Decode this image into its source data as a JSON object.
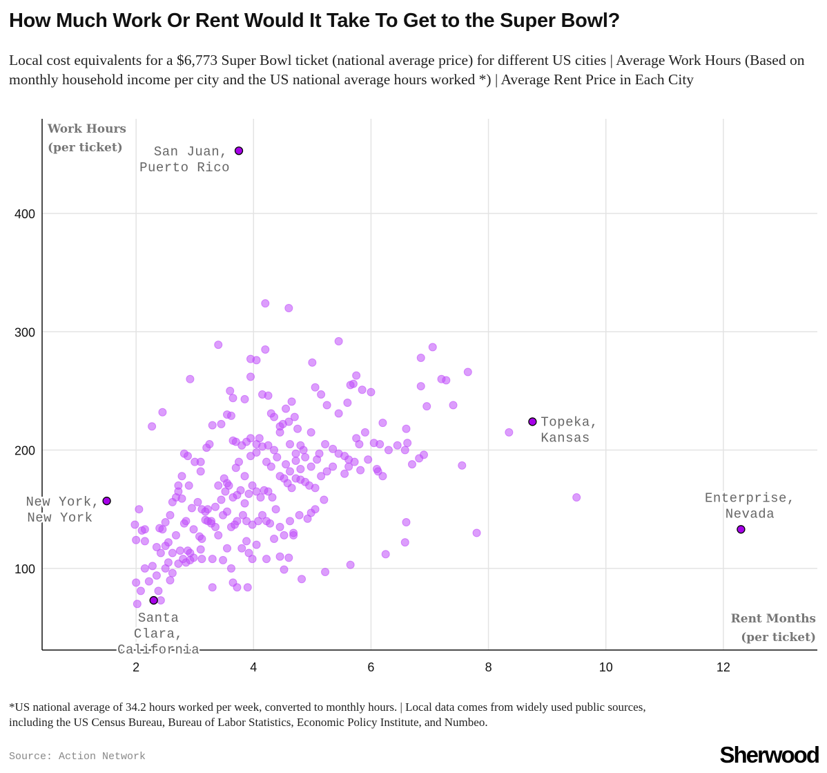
{
  "header": {
    "title": "How Much Work Or Rent Would It Take To Get to the Super Bowl?",
    "subtitle": "Local cost equivalents for a $6,773 Super Bowl ticket (national average price) for different US cities | Average Work Hours (Based on monthly household income per city and the US national average hours worked *) | Average Rent Price in Each City"
  },
  "footer": {
    "footnote": "*US national average of 34.2 hours worked per week, converted to monthly hours. | Local data comes from widely used public sources, including the US Census Bureau, Bureau of Labor Statistics, Economic Policy Institute, and Numbeo.",
    "source": "Source: Action Network",
    "brand": "Sherwood"
  },
  "colors": {
    "point_fill": "#c04dfa",
    "point_opacity": 0.55,
    "highlight_fill": "#a600e8",
    "highlight_stroke": "#000000",
    "grid": "#e3e3e3",
    "axis": "#111111"
  },
  "chart_data": {
    "type": "scatter",
    "title": "How Much Work Or Rent Would It Take To Get to the Super Bowl?",
    "xlabel": "Rent Months (per ticket)",
    "ylabel": "Work Hours (per ticket)",
    "xlabel_lines": [
      "Rent Months",
      "(per ticket)"
    ],
    "ylabel_lines": [
      "Work Hours",
      "(per ticket)"
    ],
    "xlim": [
      0.4,
      13.6
    ],
    "ylim": [
      31,
      480
    ],
    "xticks": [
      2,
      4,
      6,
      8,
      10,
      12
    ],
    "yticks": [
      100,
      200,
      300,
      400
    ],
    "grid": true,
    "highlighted": [
      {
        "city": "San Juan, Puerto Rico",
        "lines": [
          "San Juan,",
          "Puerto Rico"
        ],
        "x": 3.75,
        "y": 453,
        "label_pos": "left"
      },
      {
        "city": "New York, New York",
        "lines": [
          "New York,",
          "New York"
        ],
        "x": 1.5,
        "y": 157,
        "label_pos": "left"
      },
      {
        "city": "Santa Clara, California",
        "lines": [
          "Santa",
          "Clara,",
          "California"
        ],
        "x": 2.3,
        "y": 73,
        "label_pos": "below"
      },
      {
        "city": "Topeka, Kansas",
        "lines": [
          "Topeka,",
          "Kansas"
        ],
        "x": 8.75,
        "y": 224,
        "label_pos": "right"
      },
      {
        "city": "Enterprise, Nevada",
        "lines": [
          "Enterprise,",
          "Nevada"
        ],
        "x": 12.3,
        "y": 133,
        "label_pos": "above"
      }
    ],
    "points": [
      [
        4.2,
        324
      ],
      [
        4.6,
        320
      ],
      [
        3.4,
        289
      ],
      [
        5.45,
        292
      ],
      [
        2.92,
        260
      ],
      [
        3.95,
        277
      ],
      [
        4.05,
        276
      ],
      [
        4.2,
        285
      ],
      [
        5.0,
        274
      ],
      [
        6.85,
        278
      ],
      [
        7.05,
        287
      ],
      [
        7.65,
        266
      ],
      [
        7.2,
        260
      ],
      [
        7.28,
        259
      ],
      [
        2.27,
        220
      ],
      [
        2.45,
        232
      ],
      [
        3.6,
        250
      ],
      [
        3.65,
        244
      ],
      [
        3.62,
        229
      ],
      [
        3.85,
        243
      ],
      [
        3.95,
        262
      ],
      [
        4.15,
        247
      ],
      [
        4.25,
        246
      ],
      [
        4.3,
        231
      ],
      [
        4.35,
        228
      ],
      [
        4.45,
        220
      ],
      [
        4.55,
        235
      ],
      [
        4.6,
        224
      ],
      [
        4.65,
        241
      ],
      [
        4.7,
        228
      ],
      [
        4.75,
        218
      ],
      [
        5.05,
        253
      ],
      [
        5.15,
        247
      ],
      [
        5.25,
        238
      ],
      [
        5.45,
        231
      ],
      [
        5.6,
        240
      ],
      [
        5.65,
        255
      ],
      [
        5.7,
        256
      ],
      [
        5.75,
        263
      ],
      [
        5.85,
        251
      ],
      [
        6.0,
        249
      ],
      [
        6.2,
        223
      ],
      [
        6.6,
        218
      ],
      [
        6.85,
        254
      ],
      [
        6.95,
        237
      ],
      [
        7.4,
        238
      ],
      [
        8.35,
        215
      ],
      [
        9.5,
        160
      ],
      [
        7.8,
        130
      ],
      [
        7.55,
        187
      ],
      [
        2.82,
        197
      ],
      [
        2.88,
        195
      ],
      [
        2.72,
        170
      ],
      [
        2.78,
        178
      ],
      [
        2.9,
        170
      ],
      [
        3.0,
        190
      ],
      [
        3.2,
        202
      ],
      [
        3.25,
        205
      ],
      [
        3.3,
        221
      ],
      [
        3.45,
        222
      ],
      [
        3.55,
        230
      ],
      [
        3.65,
        208
      ],
      [
        3.7,
        207
      ],
      [
        3.8,
        204
      ],
      [
        3.88,
        207
      ],
      [
        3.95,
        210
      ],
      [
        4.05,
        205
      ],
      [
        4.1,
        210
      ],
      [
        4.15,
        203
      ],
      [
        4.25,
        204
      ],
      [
        4.35,
        200
      ],
      [
        4.45,
        215
      ],
      [
        4.5,
        222
      ],
      [
        4.62,
        205
      ],
      [
        4.72,
        197
      ],
      [
        4.8,
        204
      ],
      [
        4.85,
        200
      ],
      [
        4.98,
        215
      ],
      [
        5.12,
        197
      ],
      [
        5.22,
        205
      ],
      [
        5.35,
        201
      ],
      [
        5.45,
        197
      ],
      [
        5.55,
        195
      ],
      [
        5.62,
        192
      ],
      [
        5.75,
        210
      ],
      [
        5.8,
        205
      ],
      [
        5.9,
        215
      ],
      [
        6.05,
        206
      ],
      [
        6.15,
        205
      ],
      [
        6.3,
        200
      ],
      [
        6.45,
        204
      ],
      [
        6.58,
        200
      ],
      [
        6.62,
        206
      ],
      [
        6.7,
        188
      ],
      [
        6.82,
        193
      ],
      [
        6.9,
        196
      ],
      [
        2.45,
        133
      ],
      [
        2.5,
        139
      ],
      [
        2.58,
        145
      ],
      [
        2.62,
        156
      ],
      [
        2.68,
        160
      ],
      [
        2.72,
        165
      ],
      [
        2.78,
        159
      ],
      [
        2.85,
        140
      ],
      [
        2.95,
        151
      ],
      [
        3.05,
        156
      ],
      [
        3.12,
        150
      ],
      [
        3.18,
        141
      ],
      [
        3.22,
        150
      ],
      [
        3.28,
        140
      ],
      [
        3.35,
        152
      ],
      [
        3.45,
        158
      ],
      [
        3.52,
        165
      ],
      [
        3.58,
        170
      ],
      [
        3.65,
        160
      ],
      [
        3.72,
        162
      ],
      [
        3.78,
        166
      ],
      [
        3.85,
        155
      ],
      [
        3.92,
        163
      ],
      [
        3.98,
        170
      ],
      [
        4.05,
        165
      ],
      [
        4.12,
        160
      ],
      [
        4.18,
        166
      ],
      [
        4.25,
        165
      ],
      [
        4.32,
        160
      ],
      [
        4.45,
        178
      ],
      [
        4.52,
        176
      ],
      [
        4.58,
        172
      ],
      [
        4.65,
        168
      ],
      [
        4.72,
        176
      ],
      [
        4.8,
        175
      ],
      [
        4.88,
        173
      ],
      [
        4.95,
        170
      ],
      [
        5.05,
        168
      ],
      [
        5.15,
        178
      ],
      [
        5.25,
        182
      ],
      [
        5.35,
        186
      ],
      [
        5.55,
        180
      ],
      [
        5.62,
        186
      ],
      [
        5.72,
        190
      ],
      [
        5.82,
        183
      ],
      [
        5.95,
        192
      ],
      [
        6.1,
        184
      ],
      [
        6.2,
        178
      ],
      [
        6.12,
        182
      ],
      [
        3.1,
        190
      ],
      [
        3.1,
        182
      ],
      [
        3.4,
        170
      ],
      [
        3.5,
        176
      ],
      [
        3.55,
        172
      ],
      [
        3.7,
        185
      ],
      [
        3.75,
        190
      ],
      [
        3.85,
        178
      ],
      [
        3.95,
        195
      ],
      [
        4.05,
        198
      ],
      [
        4.22,
        190
      ],
      [
        4.3,
        186
      ],
      [
        4.4,
        194
      ],
      [
        4.55,
        188
      ],
      [
        4.62,
        182
      ],
      [
        4.72,
        191
      ],
      [
        4.8,
        184
      ],
      [
        4.88,
        194
      ],
      [
        4.98,
        186
      ],
      [
        5.08,
        192
      ],
      [
        1.98,
        137
      ],
      [
        2.0,
        124
      ],
      [
        2.05,
        150
      ],
      [
        2.1,
        132
      ],
      [
        2.15,
        133
      ],
      [
        2.15,
        123
      ],
      [
        2.35,
        118
      ],
      [
        2.4,
        134
      ],
      [
        2.42,
        113
      ],
      [
        2.5,
        119
      ],
      [
        2.55,
        122
      ],
      [
        2.62,
        113
      ],
      [
        2.68,
        128
      ],
      [
        2.75,
        115
      ],
      [
        2.82,
        138
      ],
      [
        2.88,
        115
      ],
      [
        2.92,
        113
      ],
      [
        2.98,
        133
      ],
      [
        3.08,
        127
      ],
      [
        3.12,
        125
      ],
      [
        3.18,
        148
      ],
      [
        3.22,
        140
      ],
      [
        3.28,
        138
      ],
      [
        3.35,
        135
      ],
      [
        3.4,
        128
      ],
      [
        3.48,
        145
      ],
      [
        3.55,
        148
      ],
      [
        3.62,
        135
      ],
      [
        3.68,
        137
      ],
      [
        3.72,
        140
      ],
      [
        3.82,
        145
      ],
      [
        3.88,
        140
      ],
      [
        3.98,
        137
      ],
      [
        4.08,
        140
      ],
      [
        4.15,
        145
      ],
      [
        4.22,
        140
      ],
      [
        4.28,
        138
      ],
      [
        4.38,
        150
      ],
      [
        4.45,
        135
      ],
      [
        4.52,
        128
      ],
      [
        4.62,
        140
      ],
      [
        4.68,
        128
      ],
      [
        4.78,
        145
      ],
      [
        4.92,
        142
      ],
      [
        4.98,
        147
      ],
      [
        5.05,
        150
      ],
      [
        5.2,
        158
      ],
      [
        2.0,
        88
      ],
      [
        2.02,
        70
      ],
      [
        2.08,
        81
      ],
      [
        2.15,
        100
      ],
      [
        2.22,
        89
      ],
      [
        2.28,
        102
      ],
      [
        2.35,
        94
      ],
      [
        2.38,
        81
      ],
      [
        2.42,
        73
      ],
      [
        2.5,
        100
      ],
      [
        2.55,
        105
      ],
      [
        2.58,
        90
      ],
      [
        2.62,
        96
      ],
      [
        2.72,
        104
      ],
      [
        2.8,
        108
      ],
      [
        2.85,
        105
      ],
      [
        2.92,
        107
      ],
      [
        2.98,
        109
      ],
      [
        3.1,
        116
      ],
      [
        3.12,
        108
      ],
      [
        3.3,
        108
      ],
      [
        3.48,
        107
      ],
      [
        3.55,
        117
      ],
      [
        3.62,
        100
      ],
      [
        3.65,
        88
      ],
      [
        3.72,
        84
      ],
      [
        3.8,
        117
      ],
      [
        3.88,
        123
      ],
      [
        3.92,
        113
      ],
      [
        3.98,
        108
      ],
      [
        4.05,
        120
      ],
      [
        4.22,
        108
      ],
      [
        4.35,
        125
      ],
      [
        4.45,
        110
      ],
      [
        4.52,
        99
      ],
      [
        4.6,
        109
      ],
      [
        4.68,
        130
      ],
      [
        4.82,
        91
      ],
      [
        5.22,
        97
      ],
      [
        5.65,
        103
      ],
      [
        6.25,
        112
      ],
      [
        6.58,
        122
      ],
      [
        6.6,
        139
      ],
      [
        3.3,
        84
      ],
      [
        3.9,
        84
      ]
    ]
  }
}
